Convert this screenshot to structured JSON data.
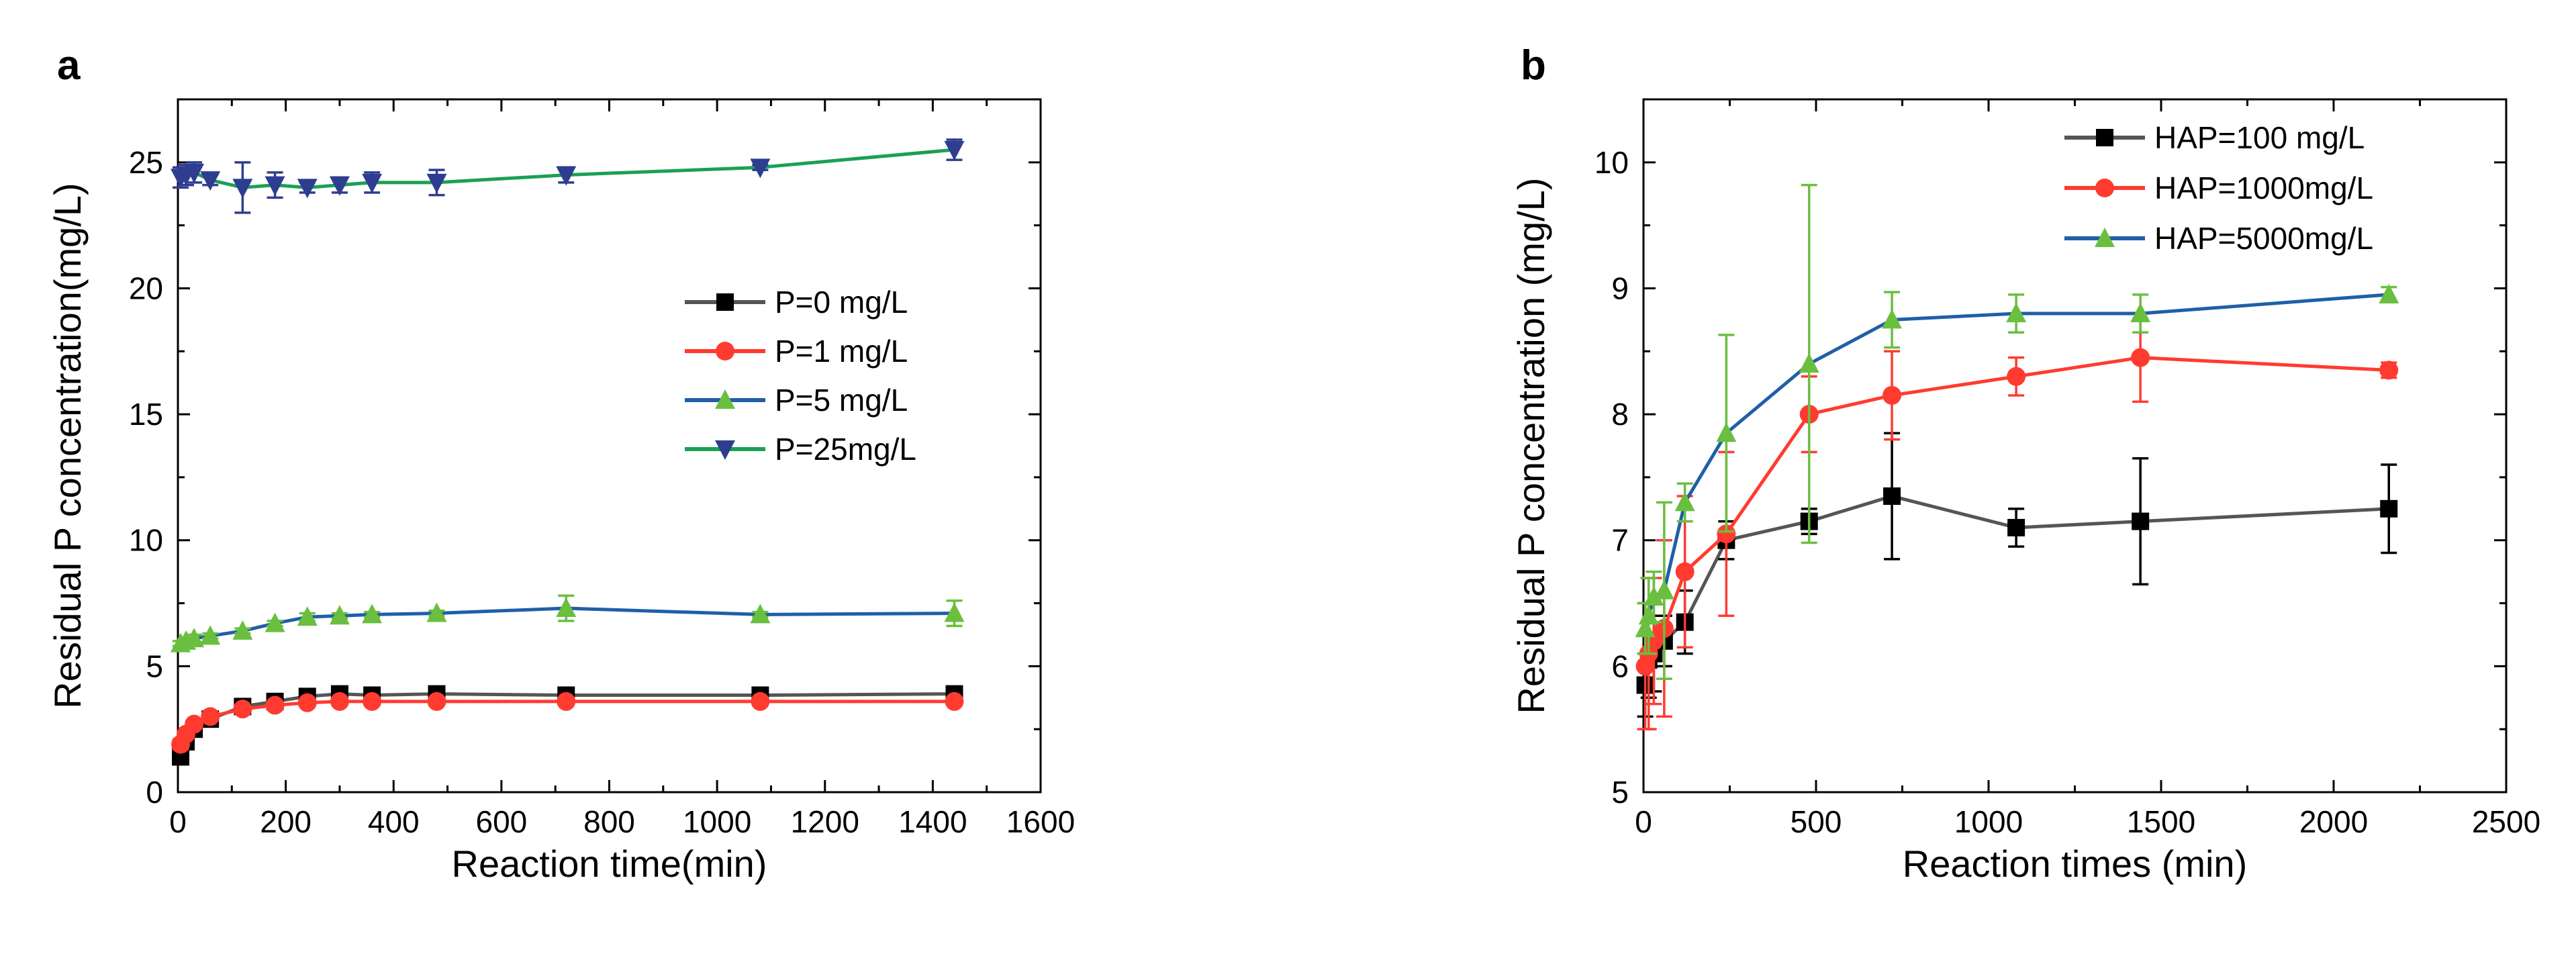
{
  "chart_data": [
    {
      "panel": "a",
      "type": "line",
      "xlabel": "Reaction time(min)",
      "ylabel": "Residual P concentration(mg/L)",
      "xlim": [
        0,
        1600
      ],
      "ylim": [
        0,
        27.5
      ],
      "xticks": [
        0,
        200,
        400,
        600,
        800,
        1000,
        1200,
        1400,
        1600
      ],
      "yticks": [
        0,
        5,
        10,
        15,
        20,
        25
      ],
      "legend_position": "center-right",
      "series": [
        {
          "name": "P=0 mg/L",
          "color": "#000000",
          "line_color": "#555555",
          "marker": "square",
          "x": [
            5,
            15,
            30,
            60,
            120,
            180,
            240,
            300,
            360,
            480,
            720,
            1080,
            1440
          ],
          "y": [
            1.4,
            2.0,
            2.5,
            2.9,
            3.4,
            3.6,
            3.8,
            3.9,
            3.85,
            3.9,
            3.85,
            3.85,
            3.9
          ],
          "err": [
            0.15,
            0.15,
            0.1,
            0.1,
            0.1,
            0.1,
            0.1,
            0.1,
            0.1,
            0.1,
            0.08,
            0.1,
            0.1
          ]
        },
        {
          "name": "P=1 mg/L",
          "color": "#ff3b30",
          "line_color": "#ff3b30",
          "marker": "circle",
          "x": [
            5,
            15,
            30,
            60,
            120,
            180,
            240,
            300,
            360,
            480,
            720,
            1080,
            1440
          ],
          "y": [
            1.9,
            2.3,
            2.7,
            3.0,
            3.3,
            3.45,
            3.55,
            3.6,
            3.6,
            3.6,
            3.6,
            3.6,
            3.6
          ],
          "err": [
            0.2,
            0.15,
            0.1,
            0.1,
            0.1,
            0.1,
            0.1,
            0.1,
            0.1,
            0.1,
            0.1,
            0.1,
            0.1
          ]
        },
        {
          "name": "P=5 mg/L",
          "color": "#6abf3e",
          "line_color": "#1f5fa8",
          "marker": "triangle-up",
          "x": [
            5,
            15,
            30,
            60,
            120,
            180,
            240,
            300,
            360,
            480,
            720,
            1080,
            1440
          ],
          "y": [
            5.9,
            6.0,
            6.1,
            6.2,
            6.4,
            6.7,
            6.95,
            7.0,
            7.05,
            7.1,
            7.3,
            7.05,
            7.1
          ],
          "err": [
            0.1,
            0.1,
            0.15,
            0.1,
            0.1,
            0.1,
            0.15,
            0.1,
            0.1,
            0.1,
            0.5,
            0.1,
            0.5
          ]
        },
        {
          "name": "P=25mg/L",
          "color": "#2e3d8f",
          "line_color": "#1aa055",
          "marker": "triangle-down",
          "x": [
            5,
            15,
            30,
            60,
            120,
            180,
            240,
            300,
            360,
            480,
            720,
            1080,
            1440
          ],
          "y": [
            24.4,
            24.5,
            24.6,
            24.3,
            24.0,
            24.1,
            24.0,
            24.1,
            24.2,
            24.2,
            24.5,
            24.8,
            25.5
          ],
          "err": [
            0.4,
            0.4,
            0.4,
            0.2,
            1.0,
            0.5,
            0.2,
            0.3,
            0.4,
            0.5,
            0.3,
            0.1,
            0.4
          ]
        }
      ]
    },
    {
      "panel": "b",
      "type": "line",
      "xlabel": "Reaction times (min)",
      "ylabel": "Residual P concentration (mg/L)",
      "xlim": [
        0,
        2500
      ],
      "ylim": [
        5,
        10.5
      ],
      "xticks": [
        0,
        500,
        1000,
        1500,
        2000,
        2500
      ],
      "yticks": [
        5,
        6,
        7,
        8,
        9,
        10
      ],
      "legend_position": "top-right",
      "series": [
        {
          "name": "HAP=100 mg/L",
          "color": "#000000",
          "line_color": "#555555",
          "marker": "square",
          "x": [
            5,
            15,
            30,
            60,
            120,
            240,
            480,
            720,
            1080,
            1440,
            2160
          ],
          "y": [
            5.85,
            6.05,
            6.1,
            6.2,
            6.35,
            7.0,
            7.15,
            7.35,
            7.1,
            7.15,
            7.25
          ],
          "err": [
            0.25,
            0.3,
            0.3,
            0.2,
            0.25,
            0.15,
            0.1,
            0.5,
            0.15,
            0.5,
            0.35
          ]
        },
        {
          "name": "HAP=1000mg/L",
          "color": "#ff3b30",
          "line_color": "#ff3b30",
          "marker": "circle",
          "x": [
            5,
            15,
            30,
            60,
            120,
            240,
            480,
            720,
            1080,
            1440,
            2160
          ],
          "y": [
            6.0,
            6.1,
            6.2,
            6.3,
            6.75,
            7.05,
            8.0,
            8.15,
            8.3,
            8.45,
            8.35
          ],
          "err": [
            0.5,
            0.6,
            0.5,
            0.7,
            0.6,
            0.65,
            0.3,
            0.35,
            0.15,
            0.35,
            0.06
          ]
        },
        {
          "name": "HAP=5000mg/L",
          "color": "#6abf3e",
          "line_color": "#1f5fa8",
          "marker": "triangle-up",
          "x": [
            5,
            15,
            30,
            60,
            120,
            240,
            480,
            720,
            1080,
            1440,
            2160
          ],
          "y": [
            6.3,
            6.4,
            6.55,
            6.6,
            7.3,
            7.85,
            8.4,
            8.75,
            8.8,
            8.8,
            8.95
          ],
          "err": [
            0.2,
            0.3,
            0.2,
            0.7,
            0.15,
            0.78,
            1.42,
            0.22,
            0.15,
            0.15,
            0.06
          ]
        }
      ]
    }
  ]
}
